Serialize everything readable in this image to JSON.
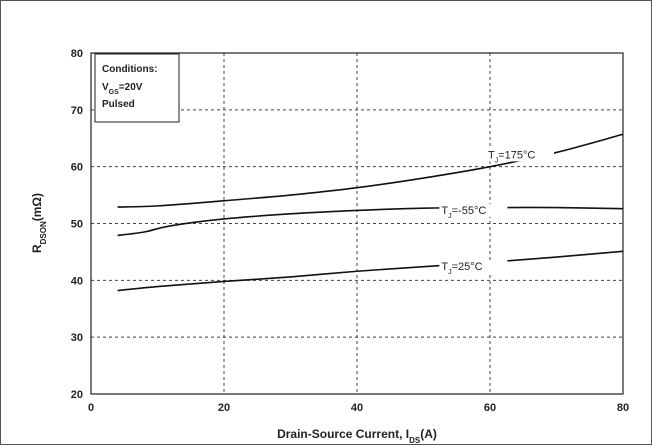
{
  "chart_data": {
    "type": "line",
    "xlabel": {
      "main": "Drain-Source Current, I",
      "sub": "DS",
      "tail": "(A)"
    },
    "ylabel": {
      "main": "R",
      "sub": "DSON",
      "tail": "(mΩ)"
    },
    "xlim": [
      0,
      80
    ],
    "ylim": [
      20,
      80
    ],
    "xticks": [
      "0",
      "20",
      "40",
      "60",
      "80"
    ],
    "yticks": [
      "20",
      "30",
      "40",
      "50",
      "60",
      "70",
      "80"
    ],
    "grid": true,
    "legend": "none",
    "annotation": {
      "title": "Conditions:",
      "line2_main": "V",
      "line2_sub": "GS",
      "line2_tail": "=20V",
      "line3": "Pulsed"
    },
    "series": [
      {
        "label_main": "T",
        "label_sub": "J",
        "label_tail": "=175°C",
        "x": [
          4,
          10,
          20,
          30,
          40,
          50,
          60,
          70,
          80
        ],
        "y": [
          52.9,
          53.1,
          54.0,
          55.0,
          56.3,
          58.0,
          60.0,
          62.5,
          65.7
        ]
      },
      {
        "label_main": "T",
        "label_sub": "J",
        "label_tail": "=-55°C",
        "x": [
          4,
          8,
          12,
          20,
          30,
          40,
          50,
          60,
          70,
          80
        ],
        "y": [
          47.9,
          48.5,
          49.6,
          50.8,
          51.7,
          52.3,
          52.7,
          52.8,
          52.8,
          52.6
        ]
      },
      {
        "label_main": "T",
        "label_sub": "J",
        "label_tail": "=25°C",
        "x": [
          4,
          10,
          20,
          30,
          40,
          50,
          60,
          70,
          80
        ],
        "y": [
          38.2,
          38.9,
          39.8,
          40.6,
          41.6,
          42.4,
          43.2,
          44.1,
          45.1
        ]
      }
    ]
  }
}
